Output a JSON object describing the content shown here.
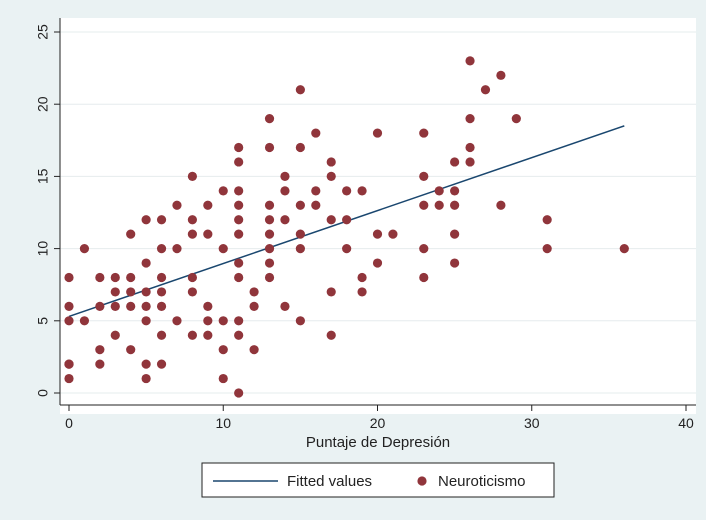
{
  "chart_data": {
    "type": "scatter",
    "title": "",
    "xlabel": "Puntaje de Depresión",
    "ylabel": "",
    "xlim": [
      0,
      40
    ],
    "ylim": [
      0,
      25
    ],
    "xticks": [
      "0",
      "10",
      "20",
      "30",
      "40"
    ],
    "yticks": [
      "0",
      "5",
      "10",
      "15",
      "20",
      "25"
    ],
    "grid": "horizontal",
    "legend_position": "bottom",
    "colors": {
      "background": "#eaf2f3",
      "plot": "#ffffff",
      "line": "#1a476f",
      "points": "#90353b",
      "grid": "#e6eced"
    },
    "series": [
      {
        "name": "Fitted values",
        "type": "line",
        "x": [
          0,
          36
        ],
        "y": [
          5.3,
          18.5
        ]
      },
      {
        "name": "Neuroticismo",
        "type": "scatter",
        "points": [
          [
            0,
            8
          ],
          [
            0,
            6
          ],
          [
            0,
            5
          ],
          [
            0,
            2
          ],
          [
            0,
            2
          ],
          [
            0,
            1
          ],
          [
            1,
            10
          ],
          [
            1,
            5
          ],
          [
            2,
            8
          ],
          [
            2,
            6
          ],
          [
            2,
            3
          ],
          [
            2,
            2
          ],
          [
            3,
            8
          ],
          [
            3,
            7
          ],
          [
            3,
            6
          ],
          [
            3,
            4
          ],
          [
            4,
            11
          ],
          [
            4,
            8
          ],
          [
            4,
            7
          ],
          [
            4,
            6
          ],
          [
            4,
            3
          ],
          [
            5,
            12
          ],
          [
            5,
            9
          ],
          [
            5,
            7
          ],
          [
            5,
            6
          ],
          [
            5,
            5
          ],
          [
            5,
            2
          ],
          [
            5,
            1
          ],
          [
            6,
            12
          ],
          [
            6,
            10
          ],
          [
            6,
            8
          ],
          [
            6,
            7
          ],
          [
            6,
            6
          ],
          [
            6,
            4
          ],
          [
            6,
            2
          ],
          [
            7,
            13
          ],
          [
            7,
            10
          ],
          [
            7,
            5
          ],
          [
            8,
            15
          ],
          [
            8,
            12
          ],
          [
            8,
            11
          ],
          [
            8,
            8
          ],
          [
            8,
            7
          ],
          [
            8,
            4
          ],
          [
            9,
            13
          ],
          [
            9,
            11
          ],
          [
            9,
            6
          ],
          [
            9,
            5
          ],
          [
            9,
            4
          ],
          [
            10,
            14
          ],
          [
            10,
            10
          ],
          [
            10,
            5
          ],
          [
            10,
            3
          ],
          [
            10,
            1
          ],
          [
            11,
            17
          ],
          [
            11,
            16
          ],
          [
            11,
            14
          ],
          [
            11,
            13
          ],
          [
            11,
            12
          ],
          [
            11,
            11
          ],
          [
            11,
            9
          ],
          [
            11,
            8
          ],
          [
            11,
            5
          ],
          [
            11,
            4
          ],
          [
            11,
            0
          ],
          [
            12,
            7
          ],
          [
            12,
            6
          ],
          [
            12,
            3
          ],
          [
            13,
            19
          ],
          [
            13,
            17
          ],
          [
            13,
            13
          ],
          [
            13,
            12
          ],
          [
            13,
            11
          ],
          [
            13,
            10
          ],
          [
            13,
            9
          ],
          [
            13,
            8
          ],
          [
            14,
            15
          ],
          [
            14,
            14
          ],
          [
            14,
            12
          ],
          [
            14,
            6
          ],
          [
            15,
            21
          ],
          [
            15,
            17
          ],
          [
            15,
            13
          ],
          [
            15,
            11
          ],
          [
            15,
            10
          ],
          [
            15,
            5
          ],
          [
            16,
            18
          ],
          [
            16,
            14
          ],
          [
            16,
            13
          ],
          [
            17,
            16
          ],
          [
            17,
            15
          ],
          [
            17,
            12
          ],
          [
            17,
            7
          ],
          [
            17,
            4
          ],
          [
            18,
            14
          ],
          [
            18,
            12
          ],
          [
            18,
            10
          ],
          [
            19,
            14
          ],
          [
            19,
            8
          ],
          [
            19,
            7
          ],
          [
            20,
            18
          ],
          [
            20,
            11
          ],
          [
            20,
            9
          ],
          [
            21,
            11
          ],
          [
            23,
            18
          ],
          [
            23,
            15
          ],
          [
            23,
            13
          ],
          [
            23,
            10
          ],
          [
            23,
            8
          ],
          [
            24,
            14
          ],
          [
            24,
            13
          ],
          [
            25,
            16
          ],
          [
            25,
            14
          ],
          [
            25,
            13
          ],
          [
            25,
            11
          ],
          [
            25,
            9
          ],
          [
            26,
            23
          ],
          [
            26,
            19
          ],
          [
            26,
            17
          ],
          [
            26,
            16
          ],
          [
            27,
            21
          ],
          [
            28,
            22
          ],
          [
            28,
            13
          ],
          [
            29,
            19
          ],
          [
            31,
            12
          ],
          [
            31,
            10
          ],
          [
            36,
            10
          ]
        ]
      }
    ]
  }
}
